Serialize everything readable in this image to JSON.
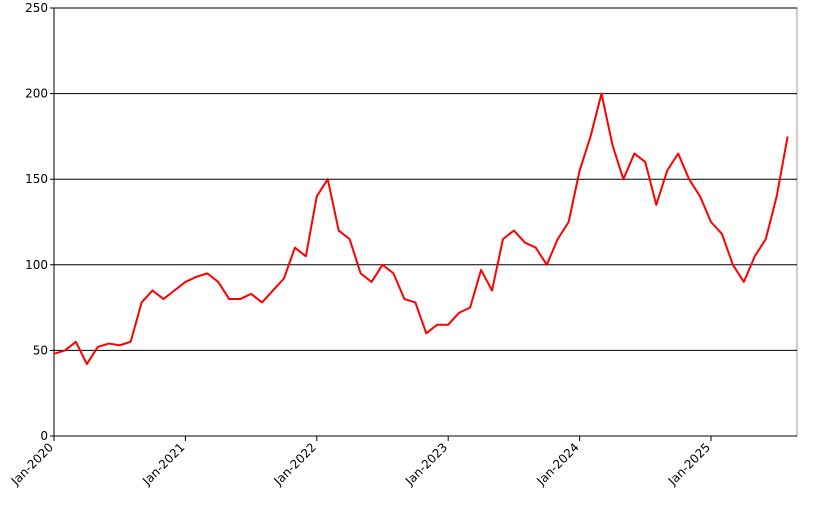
{
  "chart_data": {
    "type": "line",
    "categories": [
      "Jan-2020",
      null,
      null,
      null,
      null,
      null,
      null,
      null,
      null,
      null,
      null,
      null,
      "Jan-2021",
      null,
      null,
      null,
      null,
      null,
      null,
      null,
      null,
      null,
      null,
      null,
      "Jan-2022",
      null,
      null,
      null,
      null,
      null,
      null,
      null,
      null,
      null,
      null,
      null,
      "Jan-2023",
      null,
      null,
      null,
      null,
      null,
      null,
      null,
      null,
      null,
      null,
      null,
      "Jan-2024",
      null,
      null,
      null,
      null,
      null,
      null,
      null,
      null,
      null,
      null,
      null,
      "Jan-2025",
      null,
      null,
      null,
      null,
      null,
      null,
      null
    ],
    "series": [
      {
        "color": "#ff0000",
        "values": [
          48,
          50,
          55,
          42,
          52,
          54,
          53,
          55,
          78,
          85,
          80,
          85,
          90,
          93,
          95,
          90,
          80,
          80,
          83,
          78,
          85,
          92,
          110,
          105,
          140,
          150,
          120,
          115,
          95,
          90,
          100,
          95,
          80,
          78,
          60,
          65,
          65,
          72,
          75,
          97,
          85,
          115,
          120,
          113,
          110,
          100,
          115,
          125,
          155,
          175,
          200,
          170,
          150,
          165,
          160,
          135,
          155,
          165,
          150,
          140,
          125,
          118,
          100,
          90,
          105,
          115,
          140,
          175
        ]
      }
    ],
    "ylim": [
      0,
      250
    ],
    "yticks": [
      0,
      50,
      100,
      150,
      200,
      250
    ],
    "grid": true
  }
}
